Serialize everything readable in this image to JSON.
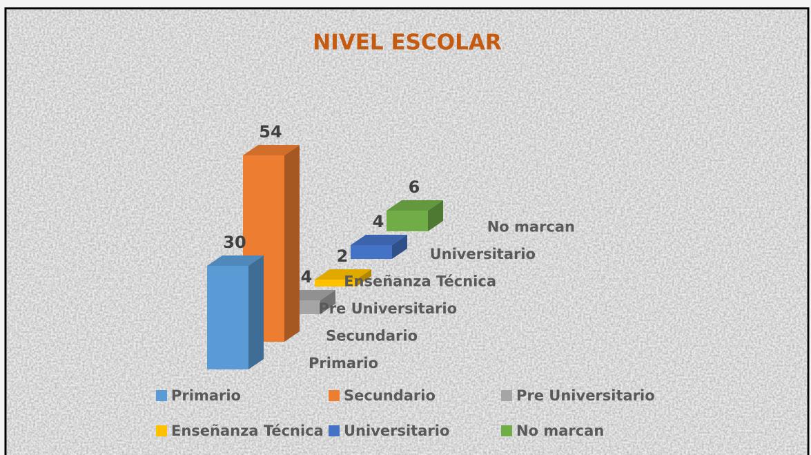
{
  "chart_data": {
    "type": "bar3d",
    "title": "NIVEL ESCOLAR",
    "series": [
      {
        "name": "Primario",
        "color": "#5b9bd5",
        "values": [
          30
        ]
      },
      {
        "name": "Secundario",
        "color": "#ed7d31",
        "values": [
          54
        ]
      },
      {
        "name": "Pre Universitario",
        "color": "#a5a5a5",
        "values": [
          4
        ]
      },
      {
        "name": "Enseñanza Técnica",
        "color": "#ffc000",
        "values": [
          2
        ]
      },
      {
        "name": "Universitario",
        "color": "#4472c4",
        "values": [
          4
        ]
      },
      {
        "name": "No marcan",
        "color": "#70ad47",
        "values": [
          6
        ]
      }
    ],
    "title_color": "#c55a11"
  }
}
